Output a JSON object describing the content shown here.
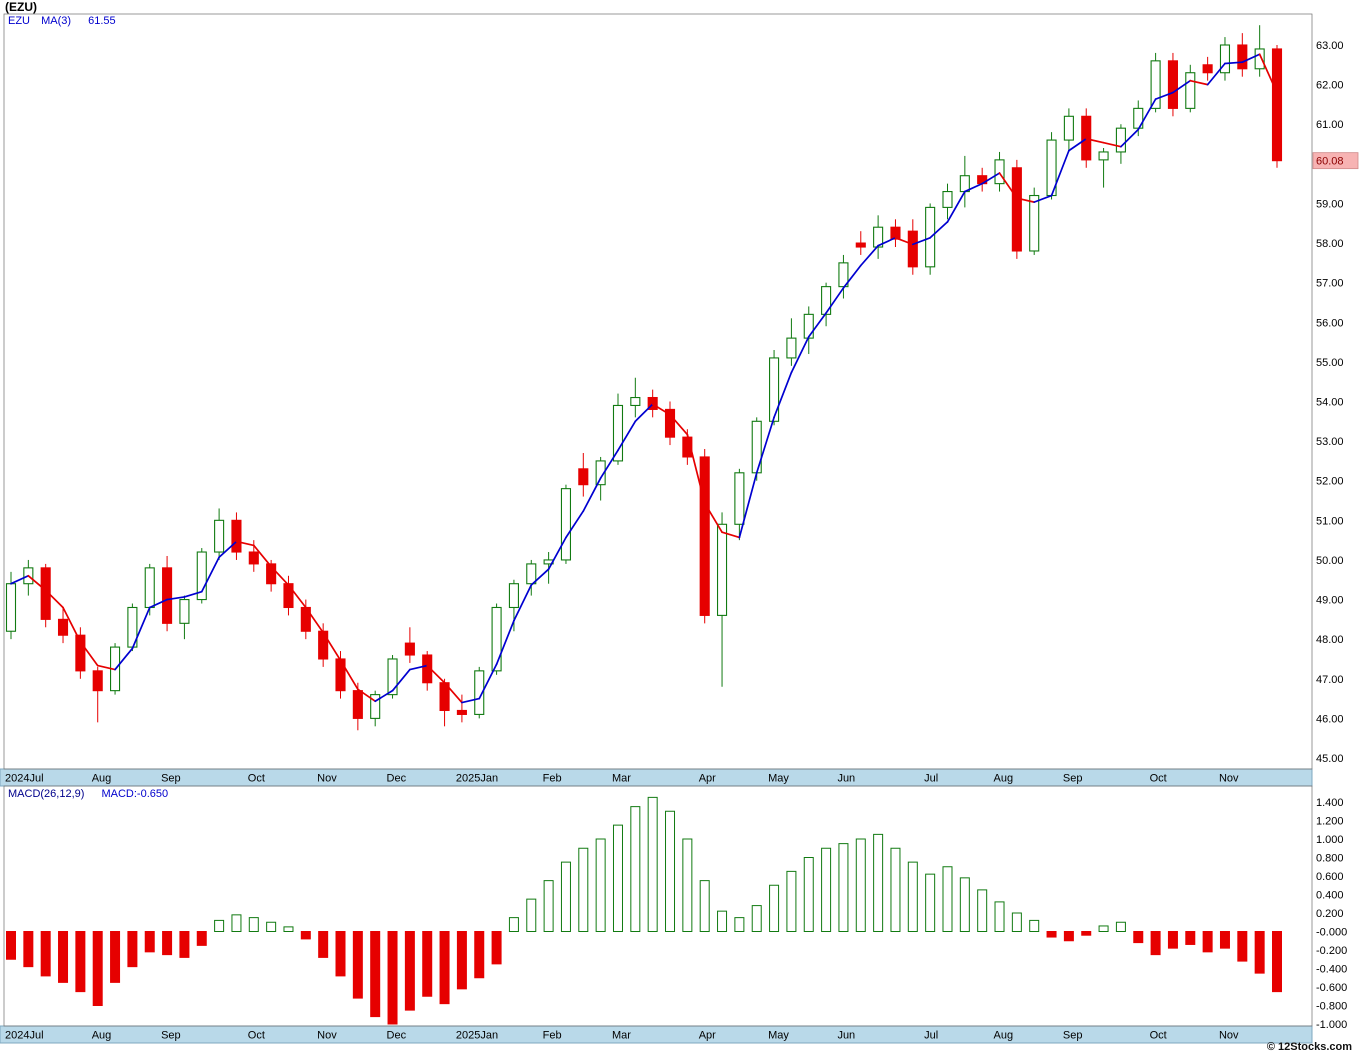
{
  "title": "(EZU)",
  "legend": {
    "symbol": "EZU",
    "ma_label": "MA(3)",
    "ma_value": "61.55"
  },
  "macd_legend": {
    "label": "MACD(26,12,9)",
    "value": "MACD:-0.650"
  },
  "credit": "© 12Stocks.com",
  "colors": {
    "up": "#117a11",
    "down": "#e60000",
    "ma_up": "#0000d0",
    "ma_down": "#e60000",
    "band_bg": "#b9d9e9",
    "band_border": "#7fa8bf",
    "axis_text": "#000000",
    "border": "#707070",
    "last_price_bg": "#f7b3b3",
    "last_price_border": "#cf8888",
    "last_price_text": "#8b0000"
  },
  "chart_data": [
    {
      "type": "candlestick",
      "title": "(EZU)",
      "symbol": "EZU",
      "timeframe": "weekly",
      "ma_period": 3,
      "ma_last_value": 61.55,
      "x_tick_labels": [
        "2024Jul",
        "Aug",
        "Sep",
        "Oct",
        "Nov",
        "Dec",
        "2025Jan",
        "Feb",
        "Mar",
        "Apr",
        "May",
        "Jun",
        "Jul",
        "Aug",
        "Sep",
        "Oct",
        "Nov"
      ],
      "x_tick_indices": [
        0,
        5,
        9,
        14,
        18,
        22,
        26,
        31,
        35,
        40,
        44,
        48,
        53,
        57,
        61,
        66,
        70
      ],
      "y_ticks": [
        63,
        62,
        61,
        60,
        59,
        58,
        57,
        56,
        55,
        54,
        53,
        52,
        51,
        50,
        49,
        48,
        47,
        46,
        45
      ],
      "ylim": [
        44.7,
        63.8
      ],
      "last_price": "60.08",
      "last_price_value": 60.08,
      "candles": [
        [
          48.2,
          49.7,
          48.0,
          49.4
        ],
        [
          49.4,
          50.0,
          49.1,
          49.8
        ],
        [
          49.8,
          49.9,
          48.3,
          48.5
        ],
        [
          48.5,
          48.8,
          47.9,
          48.1
        ],
        [
          48.1,
          48.3,
          47.0,
          47.2
        ],
        [
          47.2,
          47.3,
          45.9,
          46.7
        ],
        [
          46.7,
          47.9,
          46.6,
          47.8
        ],
        [
          47.8,
          48.9,
          47.7,
          48.8
        ],
        [
          48.8,
          49.9,
          48.6,
          49.8
        ],
        [
          49.8,
          50.1,
          48.2,
          48.4
        ],
        [
          48.4,
          49.1,
          48.0,
          49.0
        ],
        [
          49.0,
          50.3,
          48.9,
          50.2
        ],
        [
          50.2,
          51.3,
          50.0,
          51.0
        ],
        [
          51.0,
          51.2,
          50.0,
          50.2
        ],
        [
          50.2,
          50.5,
          49.7,
          49.9
        ],
        [
          49.9,
          50.0,
          49.2,
          49.4
        ],
        [
          49.4,
          49.6,
          48.6,
          48.8
        ],
        [
          48.8,
          49.0,
          48.0,
          48.2
        ],
        [
          48.2,
          48.4,
          47.3,
          47.5
        ],
        [
          47.5,
          47.7,
          46.5,
          46.7
        ],
        [
          46.7,
          46.9,
          45.7,
          46.0
        ],
        [
          46.0,
          46.7,
          45.8,
          46.6
        ],
        [
          46.6,
          47.6,
          46.5,
          47.5
        ],
        [
          47.9,
          48.3,
          47.4,
          47.6
        ],
        [
          47.6,
          47.7,
          46.7,
          46.9
        ],
        [
          46.9,
          47.0,
          45.8,
          46.2
        ],
        [
          46.2,
          46.6,
          45.9,
          46.1
        ],
        [
          46.1,
          47.3,
          46.0,
          47.2
        ],
        [
          47.2,
          48.9,
          47.1,
          48.8
        ],
        [
          48.8,
          49.5,
          48.2,
          49.4
        ],
        [
          49.4,
          50.0,
          49.1,
          49.9
        ],
        [
          49.9,
          50.2,
          49.4,
          50.0
        ],
        [
          50.0,
          51.9,
          49.9,
          51.8
        ],
        [
          52.3,
          52.7,
          51.6,
          51.9
        ],
        [
          51.9,
          52.6,
          51.5,
          52.5
        ],
        [
          52.5,
          54.2,
          52.4,
          53.9
        ],
        [
          53.9,
          54.6,
          53.6,
          54.1
        ],
        [
          54.1,
          54.3,
          53.6,
          53.8
        ],
        [
          53.8,
          54.0,
          52.9,
          53.1
        ],
        [
          53.1,
          53.3,
          52.4,
          52.6
        ],
        [
          52.6,
          52.8,
          48.4,
          48.6
        ],
        [
          48.6,
          51.2,
          46.8,
          50.9
        ],
        [
          50.9,
          52.3,
          50.5,
          52.2
        ],
        [
          52.2,
          53.6,
          52.0,
          53.5
        ],
        [
          53.5,
          55.3,
          53.4,
          55.1
        ],
        [
          55.1,
          56.1,
          54.9,
          55.6
        ],
        [
          55.6,
          56.4,
          55.2,
          56.2
        ],
        [
          56.2,
          57.0,
          55.9,
          56.9
        ],
        [
          56.9,
          57.7,
          56.6,
          57.5
        ],
        [
          58.0,
          58.3,
          57.7,
          57.9
        ],
        [
          57.9,
          58.7,
          57.6,
          58.4
        ],
        [
          58.4,
          58.6,
          57.9,
          58.1
        ],
        [
          58.3,
          58.6,
          57.2,
          57.4
        ],
        [
          57.4,
          59.0,
          57.2,
          58.9
        ],
        [
          58.9,
          59.5,
          58.6,
          59.3
        ],
        [
          59.3,
          60.2,
          58.9,
          59.7
        ],
        [
          59.7,
          59.9,
          59.3,
          59.5
        ],
        [
          59.5,
          60.3,
          59.3,
          60.1
        ],
        [
          59.9,
          60.1,
          57.6,
          57.8
        ],
        [
          57.8,
          59.4,
          57.7,
          59.2
        ],
        [
          59.2,
          60.8,
          59.1,
          60.6
        ],
        [
          60.6,
          61.4,
          60.3,
          61.2
        ],
        [
          61.2,
          61.4,
          59.9,
          60.1
        ],
        [
          60.1,
          60.4,
          59.4,
          60.3
        ],
        [
          60.3,
          61.0,
          60.0,
          60.9
        ],
        [
          60.9,
          61.6,
          60.7,
          61.4
        ],
        [
          61.4,
          62.8,
          61.3,
          62.6
        ],
        [
          62.6,
          62.8,
          61.2,
          61.4
        ],
        [
          61.4,
          62.5,
          61.3,
          62.3
        ],
        [
          62.5,
          62.7,
          62.1,
          62.3
        ],
        [
          62.3,
          63.2,
          62.1,
          63.0
        ],
        [
          63.0,
          63.3,
          62.2,
          62.4
        ],
        [
          62.4,
          63.5,
          62.2,
          62.9
        ],
        [
          62.9,
          63.0,
          59.9,
          60.08
        ]
      ]
    },
    {
      "type": "bar",
      "name": "MACD(26,12,9)",
      "last_value": -0.65,
      "y_ticks": [
        1.4,
        1.2,
        1.0,
        0.8,
        0.6,
        0.4,
        0.2,
        0.0,
        -0.2,
        -0.4,
        -0.6,
        -0.8,
        -1.0
      ],
      "y_tick_labels": [
        "1.400",
        "1.200",
        "1.000",
        "0.800",
        "0.600",
        "0.400",
        "0.200",
        "-0.000",
        "-0.200",
        "-0.400",
        "-0.600",
        "-0.800",
        "-1.000"
      ],
      "ylim": [
        -1.05,
        1.55
      ],
      "values": [
        -0.3,
        -0.38,
        -0.48,
        -0.55,
        -0.65,
        -0.8,
        -0.55,
        -0.38,
        -0.22,
        -0.25,
        -0.28,
        -0.15,
        0.12,
        0.18,
        0.15,
        0.1,
        0.05,
        -0.08,
        -0.28,
        -0.48,
        -0.72,
        -0.92,
        -1.0,
        -0.85,
        -0.7,
        -0.78,
        -0.62,
        -0.5,
        -0.35,
        0.15,
        0.35,
        0.55,
        0.75,
        0.9,
        1.0,
        1.15,
        1.35,
        1.45,
        1.3,
        1.0,
        0.55,
        0.22,
        0.15,
        0.28,
        0.5,
        0.65,
        0.8,
        0.9,
        0.95,
        1.0,
        1.05,
        0.9,
        0.75,
        0.62,
        0.7,
        0.58,
        0.45,
        0.32,
        0.2,
        0.12,
        -0.06,
        -0.1,
        -0.04,
        0.06,
        0.1,
        -0.12,
        -0.25,
        -0.18,
        -0.14,
        -0.22,
        -0.18,
        -0.32,
        -0.45,
        -0.65
      ]
    }
  ]
}
